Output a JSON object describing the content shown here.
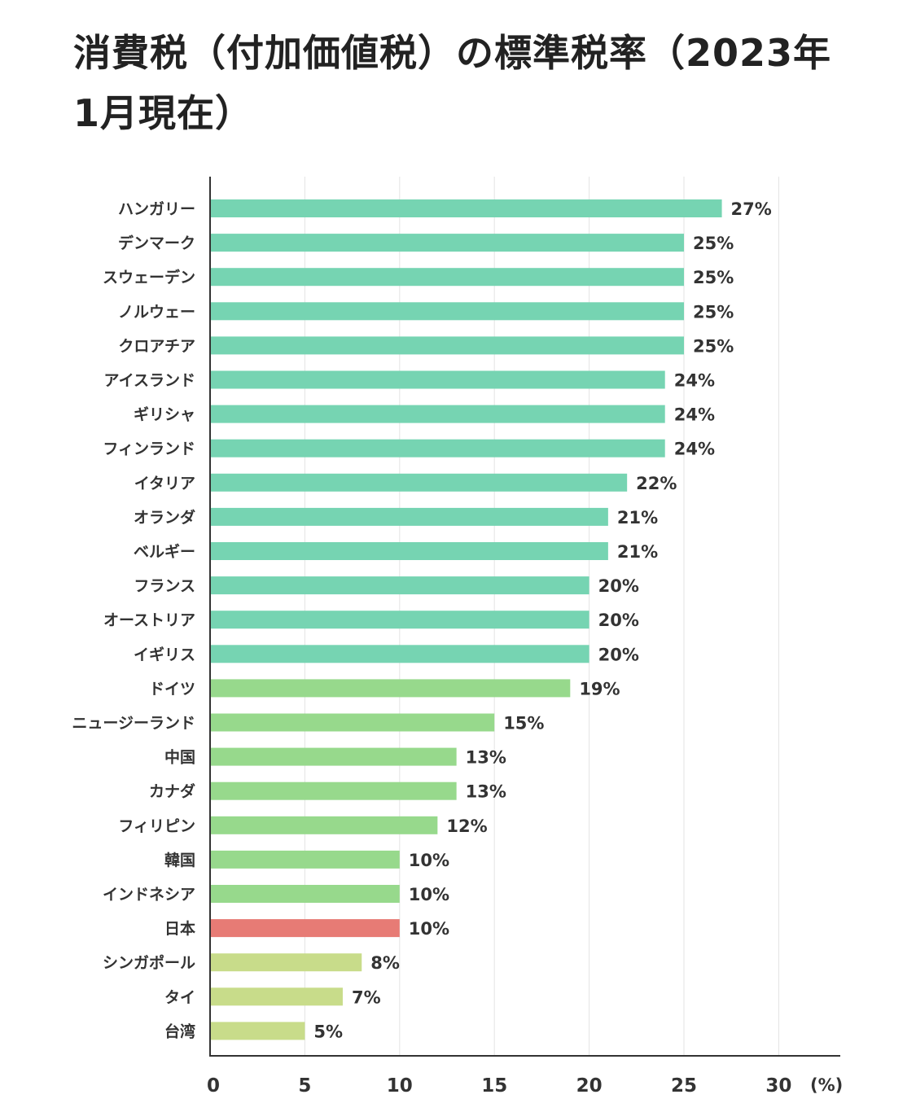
{
  "chart_data": {
    "type": "bar",
    "orientation": "horizontal",
    "title": "消費税（付加価値税）の標準税率（2023年1月現在）",
    "unit": "(%)",
    "value_suffix": "%",
    "xlim": [
      0,
      33
    ],
    "xticks": [
      0,
      5,
      10,
      15,
      20,
      25,
      30
    ],
    "grid": true,
    "colors": {
      "high": "#76d4b2",
      "mid": "#97d98c",
      "low": "#c8dc8a",
      "japan": "#e77b75"
    },
    "categories": [
      "ハンガリー",
      "デンマーク",
      "スウェーデン",
      "ノルウェー",
      "クロアチア",
      "アイスランド",
      "ギリシャ",
      "フィンランド",
      "イタリア",
      "オランダ",
      "ベルギー",
      "フランス",
      "オーストリア",
      "イギリス",
      "ドイツ",
      "ニュージーランド",
      "中国",
      "カナダ",
      "フィリピン",
      "韓国",
      "インドネシア",
      "日本",
      "シンガポール",
      "タイ",
      "台湾"
    ],
    "values": [
      27,
      25,
      25,
      25,
      25,
      24,
      24,
      24,
      22,
      21,
      21,
      20,
      20,
      20,
      19,
      15,
      13,
      13,
      12,
      10,
      10,
      10,
      8,
      7,
      5
    ],
    "color_groups": [
      "high",
      "high",
      "high",
      "high",
      "high",
      "high",
      "high",
      "high",
      "high",
      "high",
      "high",
      "high",
      "high",
      "high",
      "mid",
      "mid",
      "mid",
      "mid",
      "mid",
      "mid",
      "mid",
      "japan",
      "low",
      "low",
      "low"
    ]
  }
}
